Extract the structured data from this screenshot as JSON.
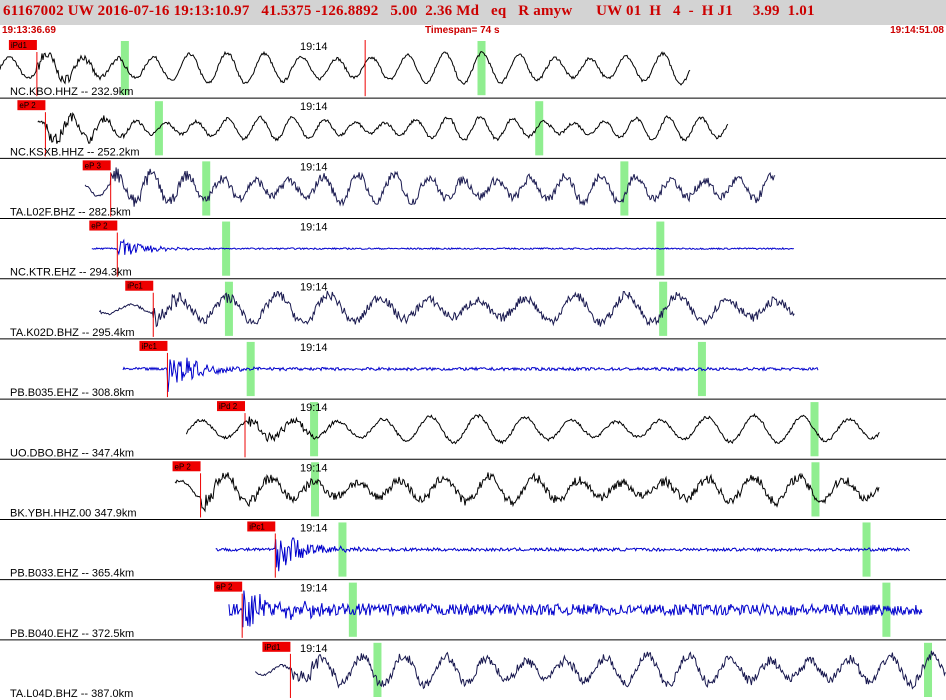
{
  "header": {
    "title": "61167002 UW 2016-07-16 19:13:10.97   41.5375 -126.8892   5.00  2.36 Md   eq   R amyw      UW 01  H   4  -  H J1     3.99  1.01",
    "start_time": "19:13:36.69",
    "timespan": "Timespan=  74 s",
    "end_time": "19:14:51.08"
  },
  "colors": {
    "header_bg": "#d3d3d3",
    "title_text": "#cc0000",
    "pick_box": "#ee0000",
    "pick_line": "#ee0000",
    "marker": "#90ee90",
    "divider": "#000000"
  },
  "chart_data": {
    "type": "line",
    "time_tick": "19:14",
    "traces": [
      {
        "label": "NC.KBO.HHZ -- 232.9km",
        "pick": "iPd1",
        "start": 0.0,
        "pick_t": 0.039,
        "end": 0.73,
        "markers": [
          0.132,
          0.509
        ],
        "extra_pick": 0.386,
        "color": "#000000",
        "style": "lowfreq",
        "amp": 0.9,
        "cycles": 19
      },
      {
        "label": "NC.KSXB.HHZ -- 252.2km",
        "pick": "eP 2",
        "start": 0.04,
        "pick_t": 0.048,
        "end": 0.77,
        "markers": [
          0.168,
          0.57
        ],
        "color": "#000000",
        "style": "lowfreq",
        "amp": 0.6,
        "cycles": 22
      },
      {
        "label": "TA.L02F.BHZ -- 282.5km",
        "pick": "eP 3",
        "start": 0.09,
        "pick_t": 0.117,
        "end": 0.82,
        "markers": [
          0.218,
          0.66
        ],
        "color": "#1a1a50",
        "style": "mixed",
        "amp": 0.8,
        "cycles": 20
      },
      {
        "label": "NC.KTR.EHZ -- 294.3km",
        "pick": "eP 2",
        "start": 0.097,
        "pick_t": 0.124,
        "end": 0.84,
        "markers": [
          0.239,
          0.698
        ],
        "color": "#0000cc",
        "style": "flat",
        "amp": 0.5,
        "cycles": 0
      },
      {
        "label": "TA.K02D.BHZ -- 295.4km",
        "pick": "iPc1",
        "start": 0.105,
        "pick_t": 0.162,
        "end": 0.84,
        "markers": [
          0.242,
          0.701
        ],
        "color": "#1a1a50",
        "style": "mixed",
        "amp": 0.8,
        "cycles": 14
      },
      {
        "label": "PB.B035.EHZ -- 308.8km",
        "pick": "iPc1",
        "start": 0.13,
        "pick_t": 0.177,
        "end": 0.865,
        "markers": [
          0.265,
          0.742
        ],
        "color": "#0000cc",
        "style": "burst",
        "amp": 0.7,
        "cycles": 0
      },
      {
        "label": "UO.DBO.BHZ -- 347.4km",
        "pick": "iPd 2",
        "start": 0.197,
        "pick_t": 0.259,
        "end": 0.93,
        "markers": [
          0.332,
          0.861
        ],
        "color": "#000000",
        "style": "lowfreq",
        "amp": 0.75,
        "cycles": 15
      },
      {
        "label": "BK.YBH.HHZ.00 347.9km",
        "pick": "eP 2",
        "start": 0.185,
        "pick_t": 0.212,
        "end": 0.93,
        "markers": [
          0.333,
          0.862
        ],
        "color": "#000000",
        "style": "mixed",
        "amp": 0.7,
        "cycles": 16
      },
      {
        "label": "PB.B033.EHZ -- 365.4km",
        "pick": "iPc1",
        "start": 0.228,
        "pick_t": 0.291,
        "end": 0.962,
        "markers": [
          0.362,
          0.916
        ],
        "color": "#0000cc",
        "style": "burst",
        "amp": 0.8,
        "cycles": 0
      },
      {
        "label": "PB.B040.EHZ -- 372.5km",
        "pick": "eP 2",
        "start": 0.242,
        "pick_t": 0.256,
        "end": 0.975,
        "markers": [
          0.373,
          0.937
        ],
        "color": "#0000cc",
        "style": "noisy",
        "amp": 0.8,
        "cycles": 0
      },
      {
        "label": "TA.L04D.BHZ -- 387.0km",
        "pick": "iPd1",
        "start": 0.27,
        "pick_t": 0.307,
        "end": 1.0,
        "markers": [
          0.399,
          0.981
        ],
        "color": "#1a1a50",
        "style": "mixed",
        "amp": 0.85,
        "cycles": 17
      }
    ]
  }
}
